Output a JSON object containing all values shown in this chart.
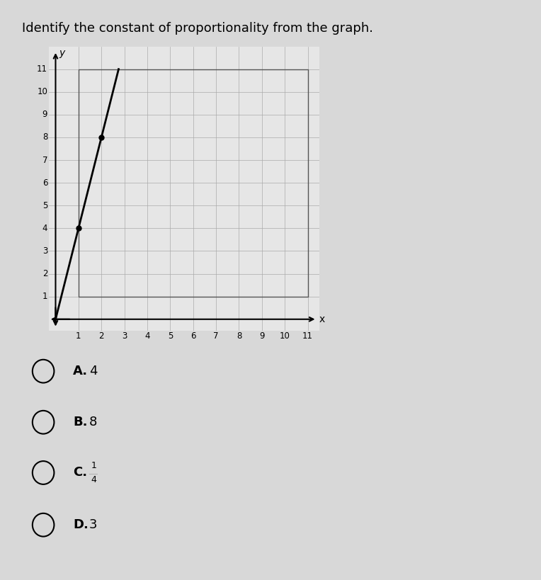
{
  "title": "Identify the constant of proportionality from the graph.",
  "title_fontsize": 13,
  "title_fontweight": "normal",
  "line_points_x": [
    0,
    1,
    2,
    2.75
  ],
  "line_points_y": [
    0,
    4,
    8,
    11
  ],
  "dot_points_x": [
    1,
    2
  ],
  "dot_points_y": [
    4,
    8
  ],
  "xlim": [
    -0.3,
    11.5
  ],
  "ylim": [
    -0.5,
    12.0
  ],
  "xticks": [
    1,
    2,
    3,
    4,
    5,
    6,
    7,
    8,
    9,
    10,
    11
  ],
  "yticks": [
    1,
    2,
    3,
    4,
    5,
    6,
    7,
    8,
    9,
    10,
    11
  ],
  "xlabel": "x",
  "ylabel": "y",
  "line_color": "#000000",
  "dot_color": "#000000",
  "grid_color": "#aaaaaa",
  "background_color": "#d8d8d8",
  "plot_bg_color": "#e6e6e6",
  "choice_labels": [
    "A.",
    "B.",
    "C.",
    "D."
  ],
  "choice_values": [
    "4",
    "8",
    "\\frac{1}{4}",
    "3"
  ],
  "answer_fontsize": 13
}
